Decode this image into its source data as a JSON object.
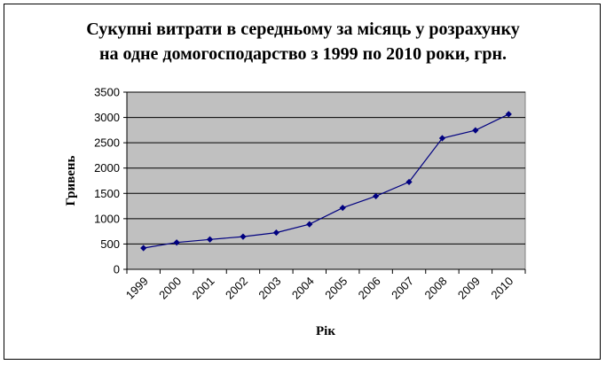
{
  "chart_data": {
    "type": "line",
    "title": "Сукупні витрати в середньому за місяць у розрахунку",
    "subtitle": "на одне домогосподарство з 1999 по 2010 роки, грн.",
    "xlabel": "Рік",
    "ylabel": "Гривень",
    "categories": [
      "1999",
      "2000",
      "2001",
      "2002",
      "2003",
      "2004",
      "2005",
      "2006",
      "2007",
      "2008",
      "2009",
      "2010"
    ],
    "series": [
      {
        "values": [
          420,
          530,
          590,
          645,
          725,
          890,
          1215,
          1445,
          1725,
          2590,
          2745,
          3065
        ]
      }
    ],
    "ylim": [
      0,
      3500
    ],
    "yticks": [
      "0",
      "500",
      "1000",
      "1500",
      "2000",
      "2500",
      "3000",
      "3500"
    ],
    "grid": true,
    "legend": "none",
    "colors": {
      "plot_background": "#c0c0c0",
      "line": "#000080",
      "marker": "#000080",
      "gridline": "#000000"
    }
  }
}
